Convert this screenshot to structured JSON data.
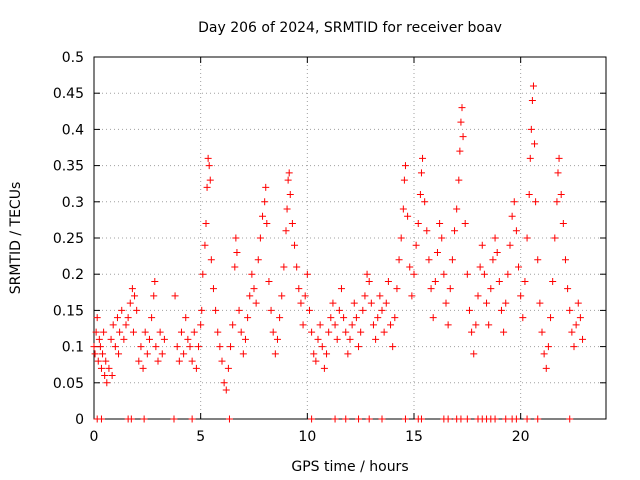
{
  "chart_data": {
    "type": "scatter",
    "title": "Day 206 of 2024, SRMTID for receiver boav",
    "xlabel": "GPS time / hours",
    "ylabel": "SRMTID / TECUs",
    "xlim": [
      0,
      24
    ],
    "ylim": [
      0,
      0.5
    ],
    "x_ticks": [
      0,
      5,
      10,
      15,
      20
    ],
    "x_tick_labels": [
      "0",
      "5",
      "10",
      "15",
      "20"
    ],
    "y_ticks": [
      0,
      0.05,
      0.1,
      0.15,
      0.2,
      0.25,
      0.3,
      0.35,
      0.4,
      0.45,
      0.5
    ],
    "y_tick_labels": [
      "0",
      "0.05",
      "0.1",
      "0.15",
      "0.2",
      "0.25",
      "0.3",
      "0.35",
      "0.4",
      "0.45",
      "0.5"
    ],
    "grid": true,
    "marker": "plus",
    "marker_color": "#ff0000",
    "series": [
      {
        "name": "SRMTID",
        "points": [
          [
            0.0,
            0.1
          ],
          [
            0.05,
            0.09
          ],
          [
            0.1,
            0.12
          ],
          [
            0.15,
            0.14
          ],
          [
            0.2,
            0.08
          ],
          [
            0.25,
            0.11
          ],
          [
            0.3,
            0.1
          ],
          [
            0.35,
            0.07
          ],
          [
            0.4,
            0.09
          ],
          [
            0.45,
            0.12
          ],
          [
            0.5,
            0.06
          ],
          [
            0.55,
            0.08
          ],
          [
            0.6,
            0.05
          ],
          [
            0.7,
            0.07
          ],
          [
            0.8,
            0.11
          ],
          [
            0.85,
            0.06
          ],
          [
            0.9,
            0.13
          ],
          [
            1.0,
            0.1
          ],
          [
            1.1,
            0.14
          ],
          [
            1.15,
            0.09
          ],
          [
            1.2,
            0.12
          ],
          [
            1.3,
            0.15
          ],
          [
            1.4,
            0.11
          ],
          [
            1.5,
            0.13
          ],
          [
            1.6,
            0.14
          ],
          [
            1.7,
            0.16
          ],
          [
            1.8,
            0.18
          ],
          [
            1.85,
            0.12
          ],
          [
            1.9,
            0.17
          ],
          [
            2.0,
            0.15
          ],
          [
            2.1,
            0.08
          ],
          [
            2.2,
            0.1
          ],
          [
            2.3,
            0.07
          ],
          [
            2.4,
            0.12
          ],
          [
            2.5,
            0.09
          ],
          [
            2.6,
            0.11
          ],
          [
            2.7,
            0.14
          ],
          [
            2.8,
            0.17
          ],
          [
            2.85,
            0.19
          ],
          [
            2.9,
            0.1
          ],
          [
            3.0,
            0.08
          ],
          [
            3.1,
            0.12
          ],
          [
            3.2,
            0.09
          ],
          [
            3.3,
            0.11
          ],
          [
            3.8,
            0.17
          ],
          [
            3.9,
            0.1
          ],
          [
            4.0,
            0.08
          ],
          [
            4.1,
            0.12
          ],
          [
            4.2,
            0.09
          ],
          [
            4.3,
            0.14
          ],
          [
            4.4,
            0.11
          ],
          [
            4.5,
            0.1
          ],
          [
            4.6,
            0.08
          ],
          [
            4.7,
            0.12
          ],
          [
            4.8,
            0.07
          ],
          [
            4.9,
            0.1
          ],
          [
            5.0,
            0.13
          ],
          [
            5.05,
            0.15
          ],
          [
            5.1,
            0.2
          ],
          [
            5.2,
            0.24
          ],
          [
            5.25,
            0.27
          ],
          [
            5.3,
            0.32
          ],
          [
            5.35,
            0.36
          ],
          [
            5.4,
            0.35
          ],
          [
            5.45,
            0.33
          ],
          [
            5.5,
            0.22
          ],
          [
            5.6,
            0.18
          ],
          [
            5.7,
            0.15
          ],
          [
            5.8,
            0.12
          ],
          [
            5.9,
            0.1
          ],
          [
            6.0,
            0.08
          ],
          [
            6.1,
            0.05
          ],
          [
            6.2,
            0.04
          ],
          [
            6.3,
            0.07
          ],
          [
            6.4,
            0.1
          ],
          [
            6.5,
            0.13
          ],
          [
            6.6,
            0.21
          ],
          [
            6.65,
            0.25
          ],
          [
            6.7,
            0.23
          ],
          [
            6.8,
            0.15
          ],
          [
            6.9,
            0.12
          ],
          [
            7.0,
            0.09
          ],
          [
            7.1,
            0.11
          ],
          [
            7.2,
            0.14
          ],
          [
            7.3,
            0.17
          ],
          [
            7.4,
            0.2
          ],
          [
            7.5,
            0.18
          ],
          [
            7.6,
            0.16
          ],
          [
            7.7,
            0.22
          ],
          [
            7.8,
            0.25
          ],
          [
            7.9,
            0.28
          ],
          [
            8.0,
            0.3
          ],
          [
            8.05,
            0.32
          ],
          [
            8.1,
            0.27
          ],
          [
            8.2,
            0.19
          ],
          [
            8.3,
            0.15
          ],
          [
            8.4,
            0.12
          ],
          [
            8.5,
            0.09
          ],
          [
            8.6,
            0.11
          ],
          [
            8.7,
            0.14
          ],
          [
            8.8,
            0.17
          ],
          [
            8.9,
            0.21
          ],
          [
            9.0,
            0.26
          ],
          [
            9.05,
            0.29
          ],
          [
            9.1,
            0.33
          ],
          [
            9.15,
            0.34
          ],
          [
            9.2,
            0.31
          ],
          [
            9.3,
            0.27
          ],
          [
            9.4,
            0.24
          ],
          [
            9.5,
            0.21
          ],
          [
            9.6,
            0.18
          ],
          [
            9.7,
            0.16
          ],
          [
            9.8,
            0.13
          ],
          [
            9.9,
            0.17
          ],
          [
            10.0,
            0.2
          ],
          [
            10.1,
            0.15
          ],
          [
            10.2,
            0.12
          ],
          [
            10.3,
            0.09
          ],
          [
            10.4,
            0.08
          ],
          [
            10.5,
            0.11
          ],
          [
            10.6,
            0.13
          ],
          [
            10.7,
            0.1
          ],
          [
            10.8,
            0.07
          ],
          [
            10.9,
            0.09
          ],
          [
            11.0,
            0.12
          ],
          [
            11.1,
            0.14
          ],
          [
            11.2,
            0.16
          ],
          [
            11.3,
            0.13
          ],
          [
            11.4,
            0.11
          ],
          [
            11.5,
            0.15
          ],
          [
            11.6,
            0.18
          ],
          [
            11.7,
            0.14
          ],
          [
            11.8,
            0.12
          ],
          [
            11.9,
            0.09
          ],
          [
            12.0,
            0.11
          ],
          [
            12.1,
            0.13
          ],
          [
            12.2,
            0.16
          ],
          [
            12.3,
            0.14
          ],
          [
            12.4,
            0.1
          ],
          [
            12.5,
            0.12
          ],
          [
            12.6,
            0.15
          ],
          [
            12.7,
            0.17
          ],
          [
            12.8,
            0.2
          ],
          [
            12.9,
            0.19
          ],
          [
            13.0,
            0.16
          ],
          [
            13.1,
            0.13
          ],
          [
            13.2,
            0.11
          ],
          [
            13.3,
            0.14
          ],
          [
            13.4,
            0.17
          ],
          [
            13.5,
            0.15
          ],
          [
            13.6,
            0.12
          ],
          [
            13.7,
            0.16
          ],
          [
            13.8,
            0.19
          ],
          [
            13.9,
            0.13
          ],
          [
            14.0,
            0.1
          ],
          [
            14.1,
            0.14
          ],
          [
            14.2,
            0.18
          ],
          [
            14.3,
            0.22
          ],
          [
            14.4,
            0.25
          ],
          [
            14.5,
            0.29
          ],
          [
            14.55,
            0.33
          ],
          [
            14.6,
            0.35
          ],
          [
            14.7,
            0.28
          ],
          [
            14.8,
            0.21
          ],
          [
            14.9,
            0.17
          ],
          [
            15.0,
            0.2
          ],
          [
            15.1,
            0.24
          ],
          [
            15.2,
            0.27
          ],
          [
            15.3,
            0.31
          ],
          [
            15.35,
            0.34
          ],
          [
            15.4,
            0.36
          ],
          [
            15.5,
            0.3
          ],
          [
            15.6,
            0.26
          ],
          [
            15.7,
            0.22
          ],
          [
            15.8,
            0.18
          ],
          [
            15.9,
            0.14
          ],
          [
            16.0,
            0.19
          ],
          [
            16.1,
            0.23
          ],
          [
            16.2,
            0.27
          ],
          [
            16.3,
            0.25
          ],
          [
            16.4,
            0.2
          ],
          [
            16.5,
            0.16
          ],
          [
            16.6,
            0.13
          ],
          [
            16.7,
            0.18
          ],
          [
            16.8,
            0.22
          ],
          [
            16.9,
            0.26
          ],
          [
            17.0,
            0.29
          ],
          [
            17.1,
            0.33
          ],
          [
            17.15,
            0.37
          ],
          [
            17.2,
            0.41
          ],
          [
            17.25,
            0.43
          ],
          [
            17.3,
            0.39
          ],
          [
            17.4,
            0.27
          ],
          [
            17.5,
            0.2
          ],
          [
            17.6,
            0.15
          ],
          [
            17.7,
            0.12
          ],
          [
            17.8,
            0.09
          ],
          [
            17.9,
            0.13
          ],
          [
            18.0,
            0.17
          ],
          [
            18.1,
            0.21
          ],
          [
            18.2,
            0.24
          ],
          [
            18.3,
            0.2
          ],
          [
            18.4,
            0.16
          ],
          [
            18.5,
            0.13
          ],
          [
            18.6,
            0.18
          ],
          [
            18.7,
            0.22
          ],
          [
            18.8,
            0.25
          ],
          [
            18.9,
            0.23
          ],
          [
            19.0,
            0.19
          ],
          [
            19.1,
            0.15
          ],
          [
            19.2,
            0.12
          ],
          [
            19.3,
            0.16
          ],
          [
            19.4,
            0.2
          ],
          [
            19.5,
            0.24
          ],
          [
            19.6,
            0.28
          ],
          [
            19.7,
            0.3
          ],
          [
            19.8,
            0.26
          ],
          [
            19.9,
            0.21
          ],
          [
            20.0,
            0.17
          ],
          [
            20.1,
            0.14
          ],
          [
            20.2,
            0.19
          ],
          [
            20.3,
            0.25
          ],
          [
            20.4,
            0.31
          ],
          [
            20.45,
            0.36
          ],
          [
            20.5,
            0.4
          ],
          [
            20.55,
            0.44
          ],
          [
            20.6,
            0.46
          ],
          [
            20.65,
            0.38
          ],
          [
            20.7,
            0.3
          ],
          [
            20.8,
            0.22
          ],
          [
            20.9,
            0.16
          ],
          [
            21.0,
            0.12
          ],
          [
            21.1,
            0.09
          ],
          [
            21.2,
            0.07
          ],
          [
            21.3,
            0.1
          ],
          [
            21.4,
            0.14
          ],
          [
            21.5,
            0.19
          ],
          [
            21.6,
            0.25
          ],
          [
            21.7,
            0.3
          ],
          [
            21.75,
            0.34
          ],
          [
            21.8,
            0.36
          ],
          [
            21.9,
            0.31
          ],
          [
            22.0,
            0.27
          ],
          [
            22.1,
            0.22
          ],
          [
            22.2,
            0.18
          ],
          [
            22.3,
            0.15
          ],
          [
            22.4,
            0.12
          ],
          [
            22.5,
            0.1
          ],
          [
            22.6,
            0.13
          ],
          [
            22.7,
            0.16
          ],
          [
            22.8,
            0.14
          ],
          [
            22.9,
            0.11
          ],
          [
            0.15,
            0.0
          ],
          [
            0.35,
            0.0
          ],
          [
            1.6,
            0.0
          ],
          [
            1.75,
            0.0
          ],
          [
            2.35,
            0.0
          ],
          [
            3.75,
            0.0
          ],
          [
            4.6,
            0.0
          ],
          [
            6.35,
            0.0
          ],
          [
            10.2,
            0.0
          ],
          [
            11.3,
            0.0
          ],
          [
            11.8,
            0.0
          ],
          [
            12.4,
            0.0
          ],
          [
            12.9,
            0.0
          ],
          [
            13.5,
            0.0
          ],
          [
            14.6,
            0.0
          ],
          [
            15.2,
            0.0
          ],
          [
            15.35,
            0.0
          ],
          [
            16.4,
            0.0
          ],
          [
            16.6,
            0.0
          ],
          [
            17.0,
            0.0
          ],
          [
            17.2,
            0.0
          ],
          [
            17.5,
            0.0
          ],
          [
            18.0,
            0.0
          ],
          [
            18.2,
            0.0
          ],
          [
            18.4,
            0.0
          ],
          [
            18.6,
            0.0
          ],
          [
            18.8,
            0.0
          ],
          [
            19.3,
            0.0
          ],
          [
            19.6,
            0.0
          ],
          [
            19.8,
            0.0
          ],
          [
            20.3,
            0.0
          ],
          [
            20.8,
            0.0
          ],
          [
            22.3,
            0.0
          ]
        ]
      }
    ]
  }
}
